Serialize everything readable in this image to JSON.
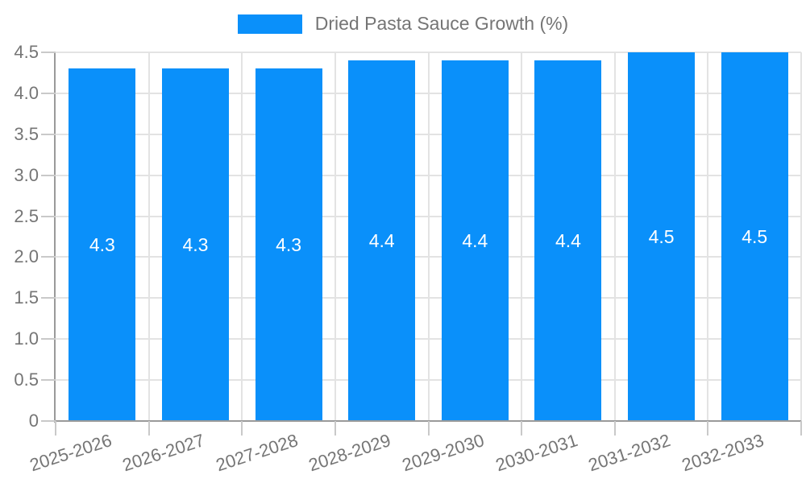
{
  "chart_data": {
    "type": "bar",
    "title": "",
    "legend": {
      "label": "Dried Pasta Sauce Growth (%)",
      "position": "top-center",
      "swatch_color": "#0a90fa"
    },
    "categories": [
      "2025-2026",
      "2026-2027",
      "2027-2028",
      "2028-2029",
      "2029-2030",
      "2030-2031",
      "2031-2032",
      "2032-2033"
    ],
    "series": [
      {
        "name": "Dried Pasta Sauce Growth (%)",
        "values": [
          4.3,
          4.3,
          4.3,
          4.4,
          4.4,
          4.4,
          4.5,
          4.5
        ]
      }
    ],
    "bar_value_labels": [
      "4.3",
      "4.3",
      "4.3",
      "4.4",
      "4.4",
      "4.4",
      "4.5",
      "4.5"
    ],
    "xlabel": "",
    "ylabel": "",
    "ylim": [
      0,
      4.5
    ],
    "yticks": [
      0,
      0.5,
      1.0,
      1.5,
      2.0,
      2.5,
      3.0,
      3.5,
      4.0,
      4.5
    ],
    "ytick_labels": [
      "0",
      "0.5",
      "1.0",
      "1.5",
      "2.0",
      "2.5",
      "3.0",
      "3.5",
      "4.0",
      "4.5"
    ],
    "grid": true,
    "colors": {
      "bar": "#0a90fa",
      "grid": "#e3e3e3",
      "axis": "#9a9a9a",
      "tick": "#c9c9c9",
      "text": "#757575",
      "bar_label": "#ffffff",
      "background": "#ffffff"
    }
  }
}
